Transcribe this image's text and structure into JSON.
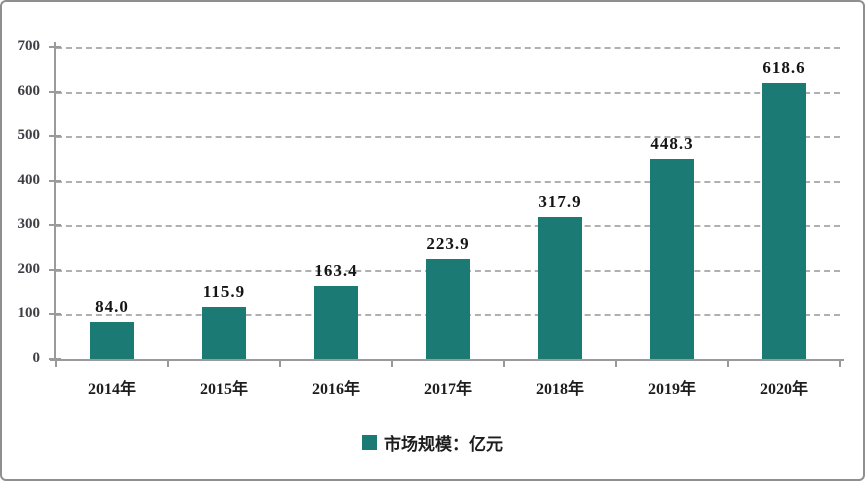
{
  "chart_data": {
    "type": "bar",
    "title": "",
    "categories": [
      "2014年",
      "2015年",
      "2016年",
      "2017年",
      "2018年",
      "2019年",
      "2020年"
    ],
    "values": [
      84.0,
      115.9,
      163.4,
      223.9,
      317.9,
      448.3,
      618.6
    ],
    "value_labels": [
      "84.0",
      "115.9",
      "163.4",
      "223.9",
      "317.9",
      "448.3",
      "618.6"
    ],
    "series_name": "市场规模：亿元",
    "xlabel": "",
    "ylabel": "",
    "ylim": [
      0,
      700
    ],
    "yticks": [
      0,
      100,
      200,
      300,
      400,
      500,
      600,
      700
    ],
    "grid": "horizontal-dashed",
    "legend_position": "bottom-center",
    "bar_color": "#1b7a73"
  },
  "legend": {
    "label": "市场规模：亿元"
  },
  "colors": {
    "bar": "#1b7a73",
    "axis": "#9a9a9a",
    "gridline": "#b0b0b0",
    "border": "#8f8f8f",
    "value_text": "#151515",
    "tick_text": "#3d3d44"
  }
}
